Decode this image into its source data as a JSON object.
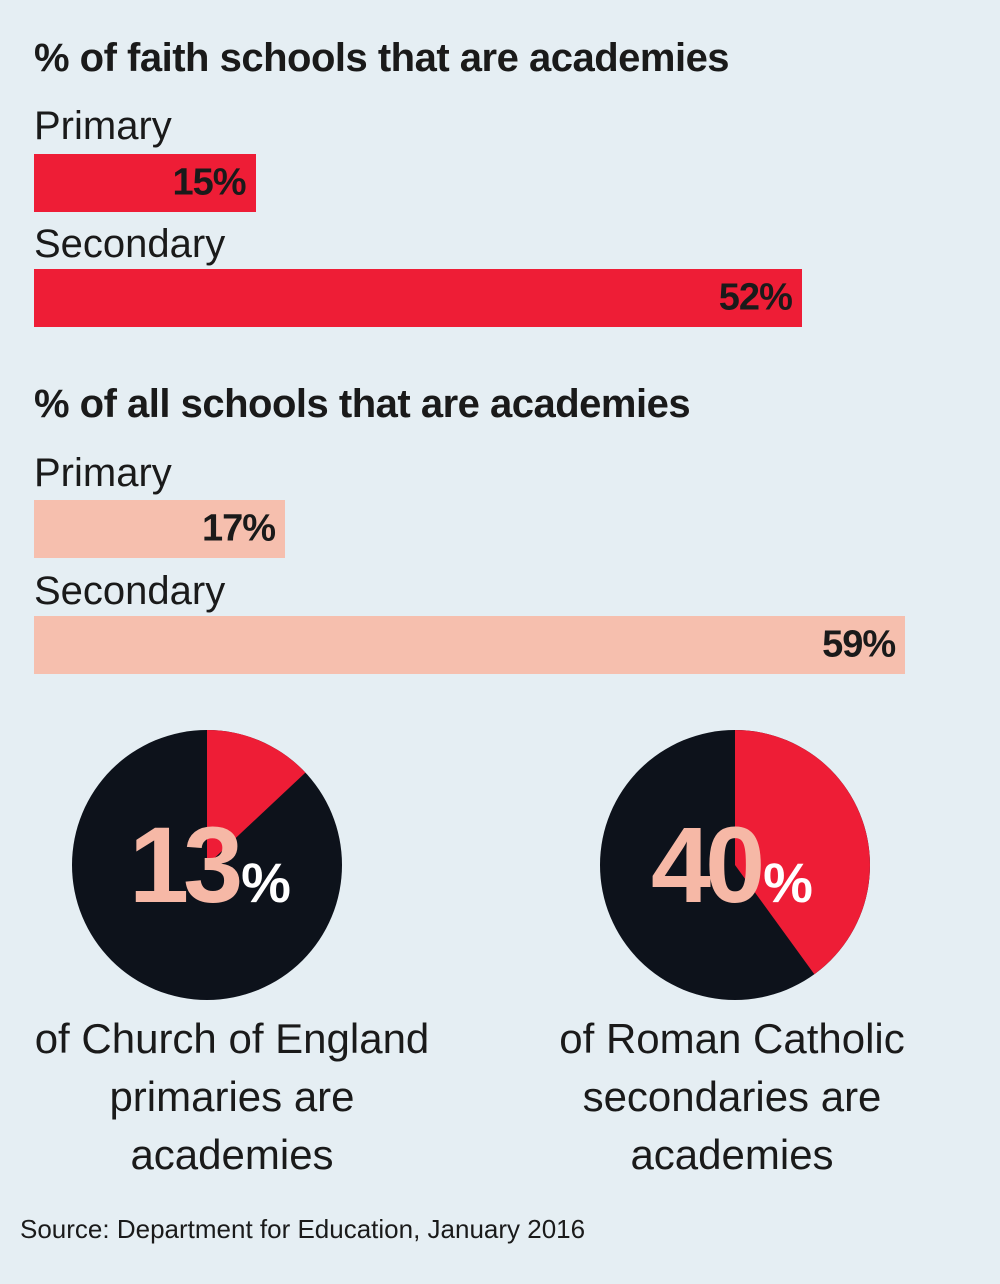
{
  "colors": {
    "background": "#e5eef3",
    "faith_bar": "#ee1d36",
    "all_bar": "#f6bfae",
    "pie_base": "#0d121b",
    "pie_slice": "#ee1d36",
    "big_number": "#f6b8a6"
  },
  "chart_data": [
    {
      "type": "bar",
      "title": "% of faith schools that are academies",
      "categories": [
        "Primary",
        "Secondary"
      ],
      "values": [
        15,
        52
      ],
      "value_labels": [
        "15%",
        "52%"
      ],
      "xlim": [
        0,
        60
      ]
    },
    {
      "type": "bar",
      "title": "% of all schools that are academies",
      "categories": [
        "Primary",
        "Secondary"
      ],
      "values": [
        17,
        59
      ],
      "value_labels": [
        "17%",
        "59%"
      ],
      "xlim": [
        0,
        60
      ]
    },
    {
      "type": "pie",
      "value": 13,
      "number": "13",
      "unit": "%",
      "caption": [
        "of Church of England",
        "primaries are",
        "academies"
      ]
    },
    {
      "type": "pie",
      "value": 40,
      "number": "40",
      "unit": "%",
      "caption": [
        "of Roman Catholic",
        "secondaries are",
        "academies"
      ]
    }
  ],
  "source": "Source: Department for Education, January 2016"
}
